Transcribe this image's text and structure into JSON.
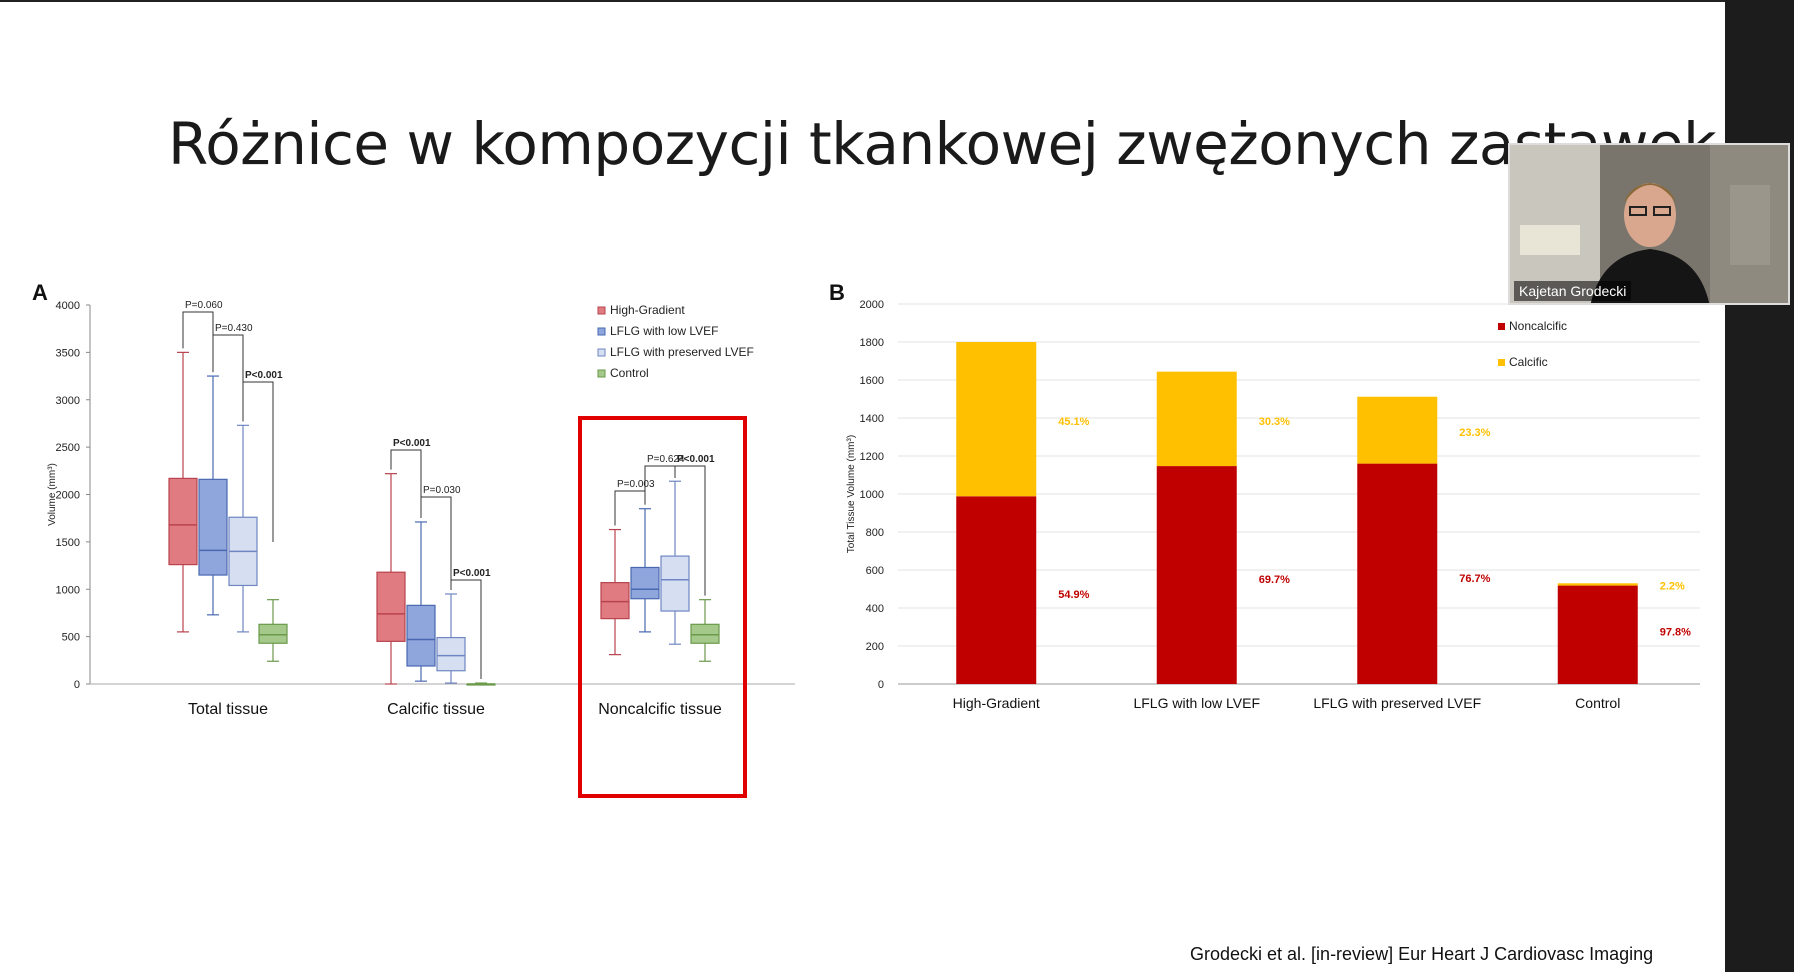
{
  "slide": {
    "title": "Różnice w kompozycji tkankowej zwężonych zastawek",
    "panel_a_letter": "A",
    "panel_b_letter": "B",
    "citation": "Grodecki et al. [in-review] Eur Heart J Cardiovasc Imaging"
  },
  "video": {
    "participant_name": "Kajetan Grodecki"
  },
  "colors": {
    "high_gradient": "#e07b82",
    "low_lvef": "#8ea6dc",
    "preserved_lvef": "#d6def2",
    "control": "#a5c98a",
    "noncalcific": "#c00000",
    "calcific": "#ffc000",
    "highlight_box": "#e00000"
  },
  "chart_data": [
    {
      "type": "box",
      "panel": "A",
      "ylabel": "Volume (mm³)",
      "ylim": [
        0,
        4000
      ],
      "yticks": [
        "0",
        "500",
        "1000",
        "1500",
        "2000",
        "2500",
        "3000",
        "3500",
        "4000"
      ],
      "categories": [
        "Total tissue",
        "Calcific tissue",
        "Noncalcific tissue"
      ],
      "legend": [
        "High-Gradient",
        "LFLG with low LVEF",
        "LFLG with preserved LVEF",
        "Control"
      ],
      "series": [
        {
          "name": "High-Gradient",
          "boxes": [
            {
              "min": 550,
              "q1": 1260,
              "median": 1680,
              "q3": 2170,
              "max": 3500
            },
            {
              "min": 0,
              "q1": 450,
              "median": 740,
              "q3": 1180,
              "max": 2220
            },
            {
              "min": 310,
              "q1": 690,
              "median": 870,
              "q3": 1070,
              "max": 1630
            }
          ]
        },
        {
          "name": "LFLG with low LVEF",
          "boxes": [
            {
              "min": 730,
              "q1": 1150,
              "median": 1410,
              "q3": 2160,
              "max": 3250
            },
            {
              "min": 30,
              "q1": 190,
              "median": 470,
              "q3": 830,
              "max": 1710
            },
            {
              "min": 550,
              "q1": 900,
              "median": 1000,
              "q3": 1230,
              "max": 1850
            }
          ]
        },
        {
          "name": "LFLG with preserved LVEF",
          "boxes": [
            {
              "min": 550,
              "q1": 1040,
              "median": 1400,
              "q3": 1760,
              "max": 2730
            },
            {
              "min": 10,
              "q1": 140,
              "median": 300,
              "q3": 490,
              "max": 950
            },
            {
              "min": 420,
              "q1": 770,
              "median": 1100,
              "q3": 1350,
              "max": 2140
            }
          ]
        },
        {
          "name": "Control",
          "boxes": [
            {
              "min": 240,
              "q1": 430,
              "median": 520,
              "q3": 630,
              "max": 890
            },
            {
              "min": 0,
              "q1": 0,
              "median": 0,
              "q3": 0,
              "max": 10
            },
            {
              "min": 240,
              "q1": 430,
              "median": 520,
              "q3": 630,
              "max": 890
            }
          ]
        }
      ],
      "annotations": [
        {
          "group": "Total tissue",
          "text": "P=0.060"
        },
        {
          "group": "Total tissue",
          "text": "P=0.430"
        },
        {
          "group": "Total tissue",
          "text": "P<0.001"
        },
        {
          "group": "Calcific tissue",
          "text": "P<0.001"
        },
        {
          "group": "Calcific tissue",
          "text": "P=0.030"
        },
        {
          "group": "Calcific tissue",
          "text": "P<0.001"
        },
        {
          "group": "Noncalcific tissue",
          "text": "P=0.003"
        },
        {
          "group": "Noncalcific tissue",
          "text": "P=0.624"
        },
        {
          "group": "Noncalcific tissue",
          "text": "P<0.001"
        }
      ],
      "highlighted_category": "Noncalcific tissue",
      "grid": false
    },
    {
      "type": "bar",
      "stacked": true,
      "panel": "B",
      "ylabel": "Total Tissue Volume (mm³)",
      "ylim": [
        0,
        2000
      ],
      "yticks": [
        "0",
        "200",
        "400",
        "600",
        "800",
        "1000",
        "1200",
        "1400",
        "1600",
        "1800",
        "2000"
      ],
      "categories": [
        "High-Gradient",
        "LFLG with low LVEF",
        "LFLG with preserved LVEF",
        "Control"
      ],
      "series": [
        {
          "name": "Noncalcific",
          "values": [
            988,
            1147,
            1160,
            518
          ],
          "labels": [
            "54.9%",
            "69.7%",
            "76.7%",
            "97.8%"
          ]
        },
        {
          "name": "Calcific",
          "values": [
            812,
            497,
            352,
            12
          ],
          "labels": [
            "45.1%",
            "30.3%",
            "23.3%",
            "2.2%"
          ]
        }
      ],
      "legend_position": "top-right",
      "grid": true
    }
  ]
}
